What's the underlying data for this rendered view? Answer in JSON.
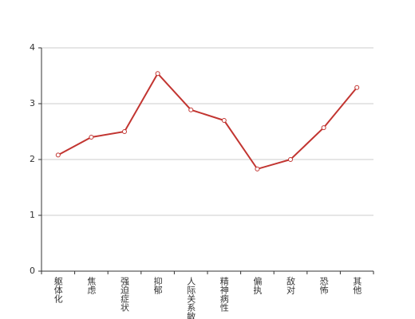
{
  "chart_data": {
    "type": "line",
    "categories": [
      "躯体化",
      "焦虑",
      "强迫症状",
      "抑郁",
      "人际关系敏感",
      "精神病性",
      "偏执",
      "敌对",
      "恐怖",
      "其他"
    ],
    "values": [
      2.08,
      2.4,
      2.5,
      3.54,
      2.89,
      2.7,
      1.83,
      2.0,
      2.57,
      3.29
    ],
    "color": "#c23531",
    "ylim": [
      0,
      4
    ],
    "yticks": [
      0,
      1,
      2,
      3,
      4
    ],
    "grid": true
  }
}
